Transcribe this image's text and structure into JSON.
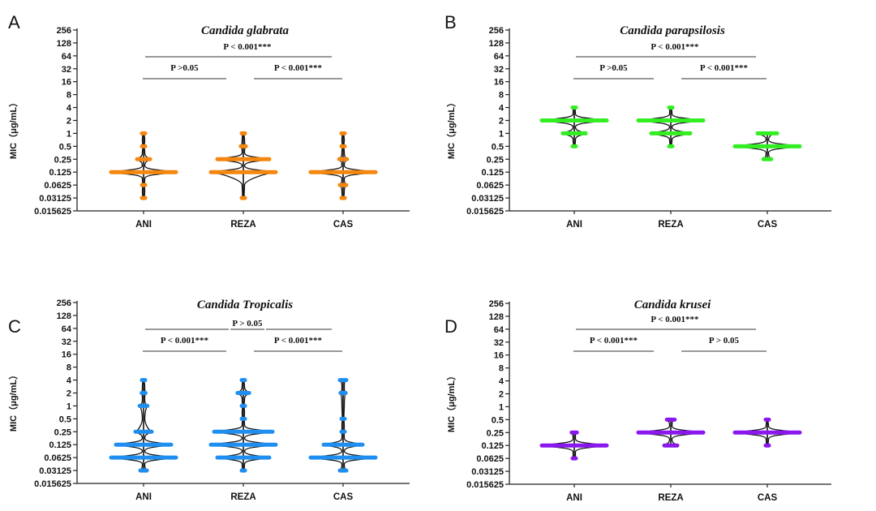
{
  "chart_data": [
    {
      "type": "violin",
      "panel_label": "A",
      "title": "Candida glabrata",
      "ylabel": "MIC（μg/mL）",
      "yscale": "log2",
      "yticks": [
        "256",
        "128",
        "64",
        "32",
        "16",
        "8",
        "4",
        "2",
        "1",
        "0.5",
        "0.25",
        "0.125",
        "0.0625",
        "0.03125",
        "0.015625"
      ],
      "ylim": [
        0.015625,
        256
      ],
      "categories": [
        "ANI",
        "REZA",
        "CAS"
      ],
      "color": "#f5860f",
      "series": [
        {
          "name": "ANI",
          "points": [
            {
              "mic": 1,
              "rel_width": 0.03
            },
            {
              "mic": 0.5,
              "rel_width": 0.03
            },
            {
              "mic": 0.25,
              "rel_width": 0.2
            },
            {
              "mic": 0.125,
              "rel_width": 1.0
            },
            {
              "mic": 0.0625,
              "rel_width": 0.04
            },
            {
              "mic": 0.03125,
              "rel_width": 0.03
            }
          ]
        },
        {
          "name": "REZA",
          "points": [
            {
              "mic": 1,
              "rel_width": 0.03
            },
            {
              "mic": 0.5,
              "rel_width": 0.08
            },
            {
              "mic": 0.25,
              "rel_width": 0.8
            },
            {
              "mic": 0.125,
              "rel_width": 1.0
            },
            {
              "mic": 0.03125,
              "rel_width": 0.03
            }
          ]
        },
        {
          "name": "CAS",
          "points": [
            {
              "mic": 1,
              "rel_width": 0.03
            },
            {
              "mic": 0.5,
              "rel_width": 0.03
            },
            {
              "mic": 0.25,
              "rel_width": 0.12
            },
            {
              "mic": 0.125,
              "rel_width": 1.0
            },
            {
              "mic": 0.0625,
              "rel_width": 0.1
            },
            {
              "mic": 0.03125,
              "rel_width": 0.03
            }
          ]
        }
      ],
      "comparisons": [
        {
          "pair": [
            "ANI",
            "CAS"
          ],
          "label": "P < 0.001***",
          "level": "top"
        },
        {
          "pair": [
            "ANI",
            "REZA"
          ],
          "label": "P >0.05",
          "level": "lower"
        },
        {
          "pair": [
            "REZA",
            "CAS"
          ],
          "label": "P < 0.001***",
          "level": "lower"
        }
      ]
    },
    {
      "type": "violin",
      "panel_label": "B",
      "title": "Candida parapsilosis",
      "ylabel": "MIC（μg/mL）",
      "yscale": "log2",
      "yticks": [
        "256",
        "128",
        "64",
        "32",
        "16",
        "8",
        "4",
        "2",
        "1",
        "0.5",
        "0.25",
        "0.125",
        "0.0625",
        "0.03125",
        "0.015625"
      ],
      "ylim": [
        0.015625,
        256
      ],
      "categories": [
        "ANI",
        "REZA",
        "CAS"
      ],
      "color": "#33ee22",
      "series": [
        {
          "name": "ANI",
          "points": [
            {
              "mic": 4,
              "rel_width": 0.05
            },
            {
              "mic": 2,
              "rel_width": 1.0
            },
            {
              "mic": 1,
              "rel_width": 0.35
            },
            {
              "mic": 0.5,
              "rel_width": 0.03
            }
          ]
        },
        {
          "name": "REZA",
          "points": [
            {
              "mic": 4,
              "rel_width": 0.05
            },
            {
              "mic": 2,
              "rel_width": 1.0
            },
            {
              "mic": 1,
              "rel_width": 0.6
            },
            {
              "mic": 0.5,
              "rel_width": 0.03
            }
          ]
        },
        {
          "name": "CAS",
          "points": [
            {
              "mic": 1,
              "rel_width": 0.3
            },
            {
              "mic": 0.5,
              "rel_width": 1.0
            },
            {
              "mic": 0.25,
              "rel_width": 0.12
            }
          ]
        }
      ],
      "comparisons": [
        {
          "pair": [
            "ANI",
            "CAS"
          ],
          "label": "P < 0.001***",
          "level": "top"
        },
        {
          "pair": [
            "ANI",
            "REZA"
          ],
          "label": "P >0.05",
          "level": "lower"
        },
        {
          "pair": [
            "REZA",
            "CAS"
          ],
          "label": "P < 0.001***",
          "level": "lower"
        }
      ]
    },
    {
      "type": "violin",
      "panel_label": "C",
      "title": "Candida Tropicalis",
      "ylabel": "MIC（μg/mL）",
      "yscale": "log2",
      "yticks": [
        "256",
        "128",
        "64",
        "32",
        "16",
        "8",
        "4",
        "2",
        "1",
        "0.5",
        "0.25",
        "0.125",
        "0.0625",
        "0.03125",
        "0.015625"
      ],
      "ylim": [
        0.015625,
        256
      ],
      "categories": [
        "ANI",
        "REZA",
        "CAS"
      ],
      "color": "#1f8ef1",
      "series": [
        {
          "name": "ANI",
          "points": [
            {
              "mic": 4,
              "rel_width": 0.03
            },
            {
              "mic": 2,
              "rel_width": 0.06
            },
            {
              "mic": 1,
              "rel_width": 0.12
            },
            {
              "mic": 0.25,
              "rel_width": 0.25
            },
            {
              "mic": 0.125,
              "rel_width": 0.85
            },
            {
              "mic": 0.0625,
              "rel_width": 1.0
            },
            {
              "mic": 0.03125,
              "rel_width": 0.1
            }
          ]
        },
        {
          "name": "REZA",
          "points": [
            {
              "mic": 4,
              "rel_width": 0.03
            },
            {
              "mic": 2,
              "rel_width": 0.18
            },
            {
              "mic": 1,
              "rel_width": 0.03
            },
            {
              "mic": 0.5,
              "rel_width": 0.04
            },
            {
              "mic": 0.25,
              "rel_width": 0.9
            },
            {
              "mic": 0.125,
              "rel_width": 1.0
            },
            {
              "mic": 0.0625,
              "rel_width": 0.8
            },
            {
              "mic": 0.03125,
              "rel_width": 0.03
            }
          ]
        },
        {
          "name": "CAS",
          "points": [
            {
              "mic": 4,
              "rel_width": 0.1
            },
            {
              "mic": 2,
              "rel_width": 0.08
            },
            {
              "mic": 0.5,
              "rel_width": 0.03
            },
            {
              "mic": 0.25,
              "rel_width": 0.05
            },
            {
              "mic": 0.125,
              "rel_width": 0.6
            },
            {
              "mic": 0.0625,
              "rel_width": 1.0
            },
            {
              "mic": 0.03125,
              "rel_width": 0.1
            }
          ]
        }
      ],
      "comparisons": [
        {
          "pair": [
            "ANI",
            "CAS"
          ],
          "label": "P > 0.05",
          "level": "top"
        },
        {
          "pair": [
            "ANI",
            "REZA"
          ],
          "label": "P < 0.001***",
          "level": "lower"
        },
        {
          "pair": [
            "REZA",
            "CAS"
          ],
          "label": "P < 0.001***",
          "level": "lower"
        }
      ]
    },
    {
      "type": "violin",
      "panel_label": "D",
      "title": "Candida krusei",
      "ylabel": "MIC（μg/mL）",
      "yscale": "log2",
      "yticks": [
        "256",
        "128",
        "64",
        "32",
        "16",
        "8",
        "4",
        "2",
        "1",
        "0.5",
        "0.25",
        "0.125",
        "0.0625",
        "0.03125",
        "0.015625"
      ],
      "ylim": [
        0.015625,
        256
      ],
      "categories": [
        "ANI",
        "REZA",
        "CAS"
      ],
      "color": "#8a17ee",
      "series": [
        {
          "name": "ANI",
          "points": [
            {
              "mic": 0.25,
              "rel_width": 0.08
            },
            {
              "mic": 0.125,
              "rel_width": 1.0
            },
            {
              "mic": 0.0625,
              "rel_width": 0.05
            }
          ]
        },
        {
          "name": "REZA",
          "points": [
            {
              "mic": 0.5,
              "rel_width": 0.12
            },
            {
              "mic": 0.25,
              "rel_width": 1.0
            },
            {
              "mic": 0.125,
              "rel_width": 0.2
            }
          ]
        },
        {
          "name": "CAS",
          "points": [
            {
              "mic": 0.5,
              "rel_width": 0.03
            },
            {
              "mic": 0.25,
              "rel_width": 1.0
            },
            {
              "mic": 0.125,
              "rel_width": 0.03
            }
          ]
        }
      ],
      "comparisons": [
        {
          "pair": [
            "ANI",
            "CAS"
          ],
          "label": "P < 0.001***",
          "level": "top"
        },
        {
          "pair": [
            "ANI",
            "REZA"
          ],
          "label": "P < 0.001***",
          "level": "lower"
        },
        {
          "pair": [
            "REZA",
            "CAS"
          ],
          "label": "P > 0.05",
          "level": "lower"
        }
      ]
    }
  ]
}
